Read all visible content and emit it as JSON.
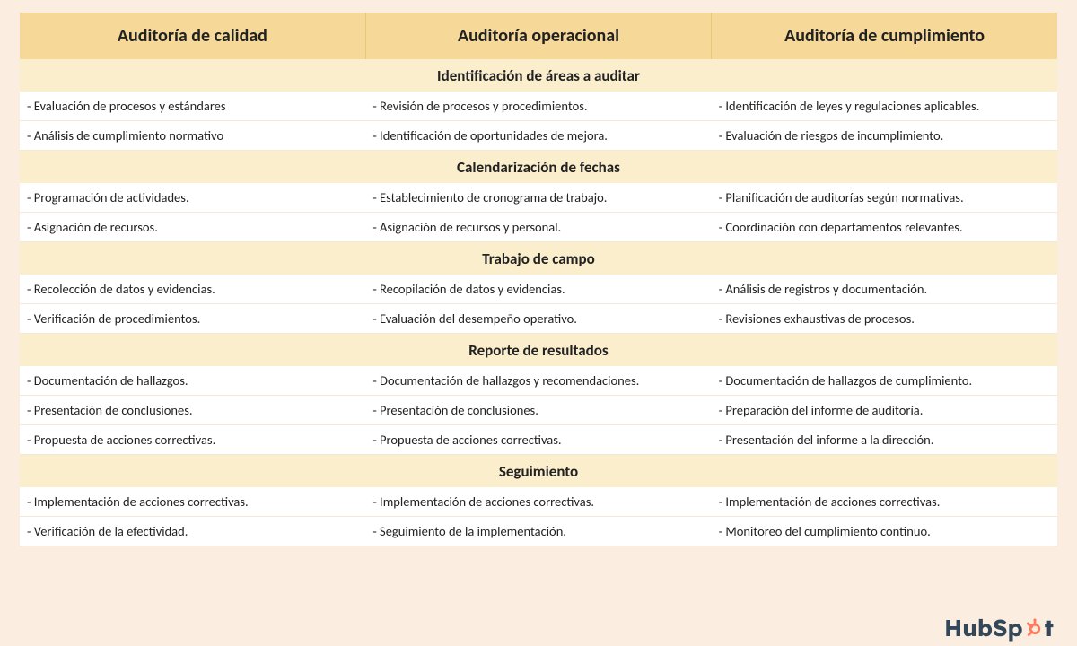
{
  "styling": {
    "page_bg": "#fbeee1",
    "header_bg": "#f6d998",
    "header_border": "#e8c77c",
    "section_bg": "#fbeecd",
    "cell_bg": "#ffffff",
    "row_border": "#f3e8d6",
    "text_color": "#222222",
    "logo_text_color": "#33475b",
    "logo_accent": "#ff7a59",
    "header_fontsize": 20,
    "section_fontsize": 17,
    "cell_fontsize": 14.5
  },
  "columns": [
    "Auditoría de calidad",
    "Auditoría operacional",
    "Auditoría de cumplimiento"
  ],
  "sections": [
    {
      "title": "Identificación de áreas a auditar",
      "rows": [
        [
          "- Evaluación de procesos y estándares",
          "- Revisión de procesos y procedimientos.",
          "- Identificación de leyes y regulaciones aplicables."
        ],
        [
          "- Análisis de cumplimiento normativo",
          "- Identificación de oportunidades de mejora.",
          "- Evaluación de riesgos de incumplimiento."
        ]
      ]
    },
    {
      "title": "Calendarización de fechas",
      "rows": [
        [
          "- Programación de actividades.",
          "- Establecimiento de cronograma de trabajo.",
          "- Planificación de auditorías según normativas."
        ],
        [
          "- Asignación de recursos.",
          "- Asignación de recursos y personal.",
          "- Coordinación con departamentos relevantes."
        ]
      ]
    },
    {
      "title": "Trabajo de campo",
      "rows": [
        [
          "- Recolección de datos y evidencias.",
          "- Recopilación de datos y evidencias.",
          "- Análisis de registros y documentación."
        ],
        [
          "- Verificación de procedimientos.",
          "- Evaluación del desempeño operativo.",
          "- Revisiones exhaustivas de procesos."
        ]
      ]
    },
    {
      "title": "Reporte de resultados",
      "rows": [
        [
          "- Documentación de hallazgos.",
          "- Documentación de hallazgos y recomendaciones.",
          "- Documentación de hallazgos de cumplimiento."
        ],
        [
          "- Presentación de conclusiones.",
          "- Presentación de conclusiones.",
          "- Preparación del informe de auditoría."
        ],
        [
          "- Propuesta de acciones correctivas.",
          "- Propuesta de acciones correctivas.",
          "- Presentación del informe a la dirección."
        ]
      ]
    },
    {
      "title": "Seguimiento",
      "rows": [
        [
          "- Implementación de acciones correctivas.",
          "- Implementación de acciones correctivas.",
          "- Implementación de acciones correctivas."
        ],
        [
          "- Verificación de la efectividad.",
          "- Seguimiento de la implementación.",
          "- Monitoreo del cumplimiento continuo."
        ]
      ]
    }
  ],
  "logo": {
    "text_left": "HubSp",
    "text_right": "t",
    "icon_name": "sprocket-icon"
  }
}
